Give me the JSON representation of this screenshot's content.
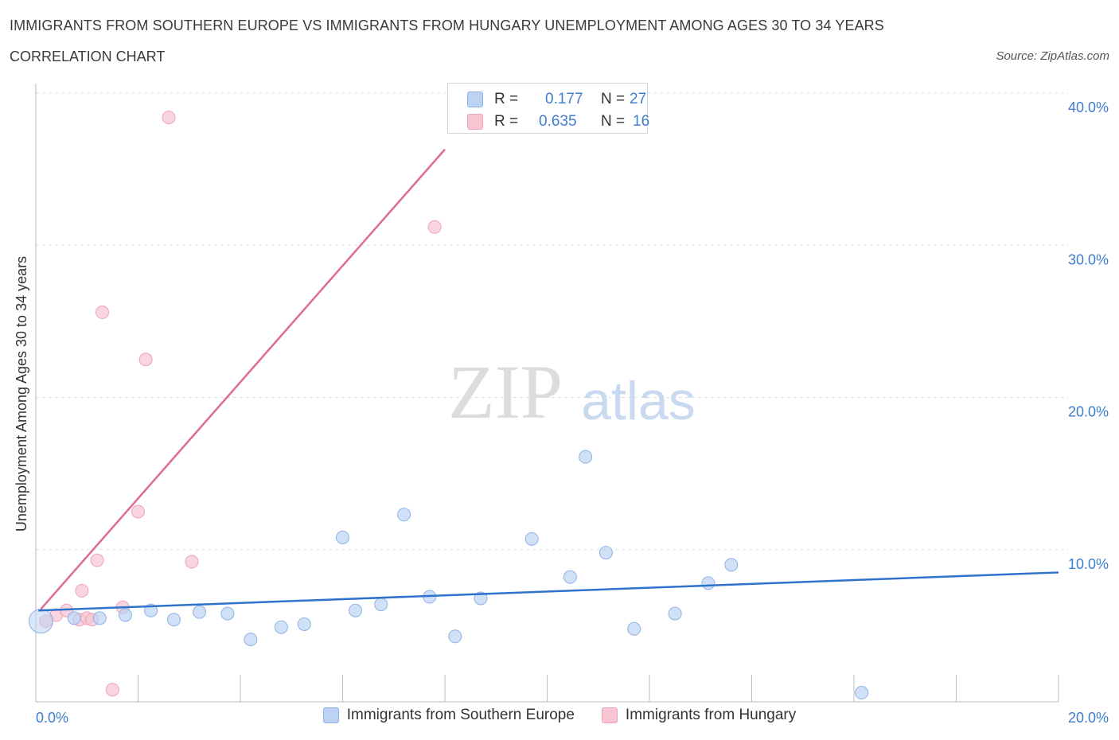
{
  "header": {
    "title": "IMMIGRANTS FROM SOUTHERN EUROPE VS IMMIGRANTS FROM HUNGARY UNEMPLOYMENT AMONG AGES 30 TO 34 YEARS",
    "subtitle": "CORRELATION CHART",
    "source": "Source: ZipAtlas.com"
  },
  "watermark": {
    "zip": "ZIP",
    "atlas": "atlas"
  },
  "stats": {
    "r_label": "R =",
    "n_label": "N =",
    "blue": {
      "r": "0.177",
      "n": "27"
    },
    "pink": {
      "r": "0.635",
      "n": "16"
    }
  },
  "colors": {
    "blue_fill": "#bcd3f3",
    "blue_stroke": "#8fb2e6",
    "blue_line": "#2f72cc",
    "pink_fill": "#f7c4d2",
    "pink_stroke": "#eea3b8",
    "pink_line": "#e06b93",
    "axis_label": "#3f7dd0",
    "grid": "#dddddd"
  },
  "chart_data": {
    "type": "scatter",
    "title": "IMMIGRANTS FROM SOUTHERN EUROPE VS IMMIGRANTS FROM HUNGARY UNEMPLOYMENT AMONG AGES 30 TO 34 YEARS",
    "xlabel": "",
    "ylabel": "Unemployment Among Ages 30 to 34 years",
    "xlim": [
      0,
      20
    ],
    "ylim": [
      0,
      40
    ],
    "x_tick_labels": [
      "0.0%",
      "20.0%"
    ],
    "y_ticks": [
      10,
      20,
      30,
      40
    ],
    "y_tick_labels": [
      "10.0%",
      "20.0%",
      "30.0%",
      "40.0%"
    ],
    "legend": [
      "Immigrants from Southern Europe",
      "Immigrants from Hungary"
    ],
    "series": [
      {
        "name": "Immigrants from Southern Europe",
        "points": [
          {
            "x": 0.1,
            "y": 5.3,
            "big": true
          },
          {
            "x": 0.75,
            "y": 5.5
          },
          {
            "x": 1.25,
            "y": 5.5
          },
          {
            "x": 1.75,
            "y": 5.7
          },
          {
            "x": 2.25,
            "y": 6.0
          },
          {
            "x": 2.7,
            "y": 5.4
          },
          {
            "x": 3.2,
            "y": 5.9
          },
          {
            "x": 3.75,
            "y": 5.8
          },
          {
            "x": 4.2,
            "y": 4.1
          },
          {
            "x": 4.8,
            "y": 4.9
          },
          {
            "x": 5.25,
            "y": 5.1
          },
          {
            "x": 6.0,
            "y": 10.8
          },
          {
            "x": 6.25,
            "y": 6.0
          },
          {
            "x": 6.75,
            "y": 6.4
          },
          {
            "x": 7.2,
            "y": 12.3
          },
          {
            "x": 7.7,
            "y": 6.9
          },
          {
            "x": 8.2,
            "y": 4.3
          },
          {
            "x": 8.7,
            "y": 6.8
          },
          {
            "x": 9.7,
            "y": 10.7
          },
          {
            "x": 10.45,
            "y": 8.2
          },
          {
            "x": 10.75,
            "y": 16.1
          },
          {
            "x": 11.15,
            "y": 9.8
          },
          {
            "x": 11.7,
            "y": 4.8
          },
          {
            "x": 12.5,
            "y": 5.8
          },
          {
            "x": 13.15,
            "y": 7.8
          },
          {
            "x": 13.6,
            "y": 9.0
          },
          {
            "x": 16.15,
            "y": 0.6
          }
        ],
        "trend": {
          "x1": 0.05,
          "y1": 6.0,
          "x2": 20.0,
          "y2": 8.5
        }
      },
      {
        "name": "Immigrants from Hungary",
        "points": [
          {
            "x": 0.2,
            "y": 5.3
          },
          {
            "x": 0.4,
            "y": 5.7
          },
          {
            "x": 0.6,
            "y": 6.0
          },
          {
            "x": 0.85,
            "y": 5.4
          },
          {
            "x": 0.9,
            "y": 7.3
          },
          {
            "x": 1.0,
            "y": 5.5
          },
          {
            "x": 1.2,
            "y": 9.3
          },
          {
            "x": 1.3,
            "y": 25.6
          },
          {
            "x": 1.5,
            "y": 0.8
          },
          {
            "x": 1.7,
            "y": 6.2
          },
          {
            "x": 2.0,
            "y": 12.5
          },
          {
            "x": 2.15,
            "y": 22.5
          },
          {
            "x": 2.6,
            "y": 38.4
          },
          {
            "x": 3.05,
            "y": 9.2
          },
          {
            "x": 7.8,
            "y": 31.2
          },
          {
            "x": 1.1,
            "y": 5.4
          }
        ],
        "trend": {
          "x1": 0.1,
          "y1": 6.1,
          "x2": 8.0,
          "y2": 36.3
        }
      }
    ]
  }
}
